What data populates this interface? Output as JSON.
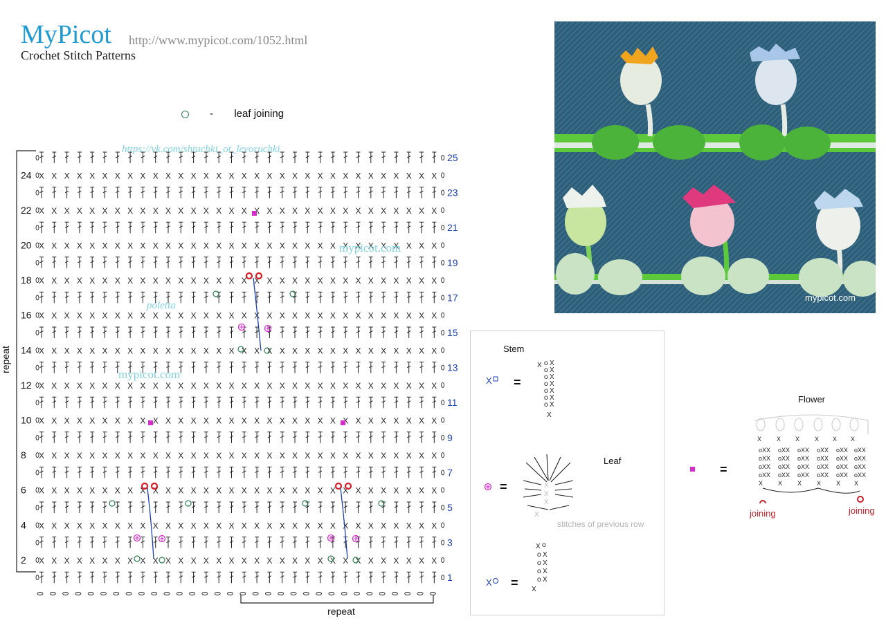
{
  "header": {
    "brand": "MyPicot",
    "subtitle": "Crochet Stitch Patterns",
    "url": "http://www.mypicot.com/1052.html"
  },
  "legend": {
    "symbol": "○",
    "dash": "-",
    "label": "leaf joining"
  },
  "watermarks": [
    "https://vk.com/shtuchki_ot_levoruchki",
    "mypicot.com",
    "poletta",
    "mypicot.com"
  ],
  "chart": {
    "even_rows": [
      "24",
      "22",
      "20",
      "18",
      "16",
      "14",
      "12",
      "10",
      "8",
      "6",
      "4",
      "2"
    ],
    "odd_rows": [
      "25",
      "23",
      "21",
      "19",
      "17",
      "15",
      "13",
      "11",
      "9",
      "7",
      "5",
      "3",
      "1"
    ],
    "left_bracket_label": "repeat",
    "bottom_bracket_label": "repeat"
  },
  "photo": {
    "caption": "mypicot.com"
  },
  "key": {
    "stem": "Stem",
    "leaf": "Leaf",
    "flower": "Flower",
    "equals": "=",
    "previous_row": "stitches of previous row",
    "joining": "joining"
  },
  "colors": {
    "brand": "#1f9bd1",
    "row_numbers_odd": "#1a3fb3",
    "flower_marker": "#d62bcf",
    "joining_marker": "#d41f26",
    "leaf_joining": "#2e7d4f",
    "photo_background": "#2f5f78"
  }
}
